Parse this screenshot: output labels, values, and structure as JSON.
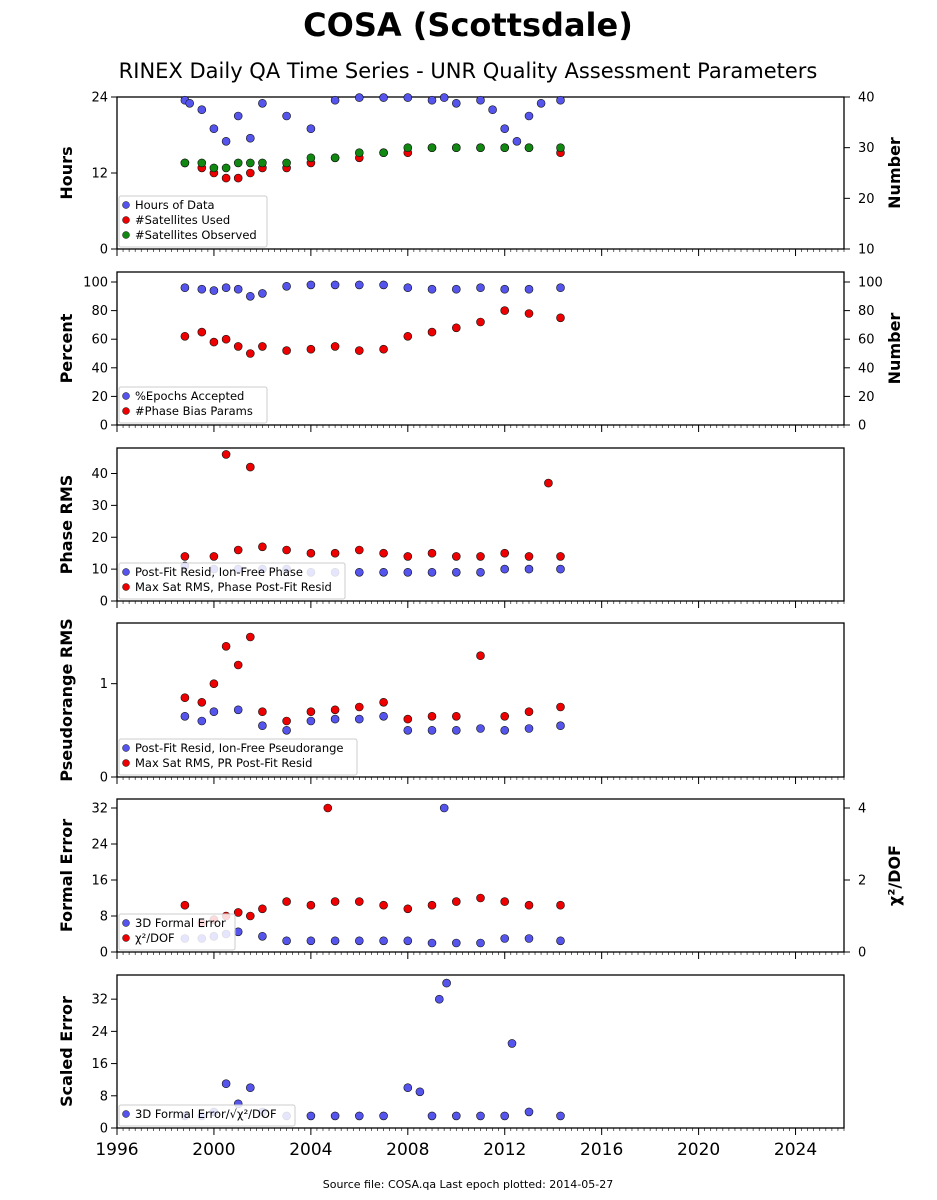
{
  "title": "COSA (Scottsdale)",
  "subtitle": "RINEX Daily QA Time Series - UNR Quality Assessment Parameters",
  "footer": "Source file: COSA.qa Last epoch plotted: 2014-05-27",
  "colors": {
    "blue": "#5555ee",
    "red": "#ee0000",
    "green": "#118811"
  },
  "chart_data": {
    "type": "scatter",
    "xlim": [
      1996,
      2026
    ],
    "xticks": [
      "1996",
      "2000",
      "2004",
      "2008",
      "2012",
      "2016",
      "2020",
      "2024"
    ],
    "panels": [
      {
        "ylabel": "Hours",
        "ylim": [
          0,
          24
        ],
        "yticks": [
          "0",
          "12",
          "24"
        ],
        "ylabel_right": "Number",
        "ylim_right": [
          10,
          40
        ],
        "yticks_right": [
          "10",
          "20",
          "30",
          "40"
        ],
        "legend": [
          "Hours of Data",
          "#Satellites Used",
          "#Satellites Observed"
        ],
        "series": [
          {
            "name": "Hours of Data",
            "color": "blue",
            "axis": "left",
            "x": [
              1998.8,
              1999.0,
              1999.5,
              2000.0,
              2000.5,
              2001.0,
              2001.5,
              2002.0,
              2003.0,
              2004.0,
              2005.0,
              2006.0,
              2007.0,
              2008.0,
              2009.0,
              2009.5,
              2010.0,
              2011.0,
              2011.5,
              2012.0,
              2012.5,
              2013.0,
              2013.5,
              2014.3
            ],
            "y": [
              23.5,
              23.0,
              22.0,
              19.0,
              17.0,
              21.0,
              17.5,
              23.0,
              21.0,
              19.0,
              23.5,
              23.9,
              23.9,
              23.9,
              23.5,
              23.9,
              23.0,
              23.5,
              22.0,
              19.0,
              17.0,
              21.0,
              23.0,
              23.5
            ]
          },
          {
            "name": "#Satellites Used",
            "color": "red",
            "axis": "right",
            "x": [
              1998.8,
              1999.5,
              2000.0,
              2000.5,
              2001.0,
              2001.5,
              2002.0,
              2003.0,
              2004.0,
              2005.0,
              2006.0,
              2007.0,
              2008.0,
              2009.0,
              2010.0,
              2011.0,
              2012.0,
              2013.0,
              2014.3
            ],
            "y": [
              27,
              26,
              25,
              24,
              24,
              25,
              26,
              26,
              27,
              28,
              28,
              29,
              29,
              30,
              30,
              30,
              30,
              30,
              29
            ]
          },
          {
            "name": "#Satellites Observed",
            "color": "green",
            "axis": "right",
            "x": [
              1998.8,
              1999.5,
              2000.0,
              2000.5,
              2001.0,
              2001.5,
              2002.0,
              2003.0,
              2004.0,
              2005.0,
              2006.0,
              2007.0,
              2008.0,
              2009.0,
              2010.0,
              2011.0,
              2012.0,
              2013.0,
              2014.3
            ],
            "y": [
              27,
              27,
              26,
              26,
              27,
              27,
              27,
              27,
              28,
              28,
              29,
              29,
              30,
              30,
              30,
              30,
              30,
              30,
              30
            ]
          }
        ]
      },
      {
        "ylabel": "Percent",
        "ylim": [
          0,
          107
        ],
        "yticks": [
          "0",
          "20",
          "40",
          "60",
          "80",
          "100"
        ],
        "ylabel_right": "Number",
        "ylim_right": [
          0,
          107
        ],
        "yticks_right": [
          "0",
          "20",
          "40",
          "60",
          "80",
          "100"
        ],
        "legend": [
          "%Epochs Accepted",
          "#Phase Bias Params"
        ],
        "series": [
          {
            "name": "%Epochs Accepted",
            "color": "blue",
            "axis": "left",
            "x": [
              1998.8,
              1999.5,
              2000.0,
              2000.5,
              2001.0,
              2001.5,
              2002.0,
              2003.0,
              2004.0,
              2005.0,
              2006.0,
              2007.0,
              2008.0,
              2009.0,
              2010.0,
              2011.0,
              2012.0,
              2013.0,
              2014.3
            ],
            "y": [
              96,
              95,
              94,
              96,
              95,
              90,
              92,
              97,
              98,
              98,
              98,
              98,
              96,
              95,
              95,
              96,
              95,
              95,
              96
            ]
          },
          {
            "name": "#Phase Bias Params",
            "color": "red",
            "axis": "right",
            "x": [
              1998.8,
              1999.5,
              2000.0,
              2000.5,
              2001.0,
              2001.5,
              2002.0,
              2003.0,
              2004.0,
              2005.0,
              2006.0,
              2007.0,
              2008.0,
              2009.0,
              2010.0,
              2011.0,
              2012.0,
              2013.0,
              2014.3
            ],
            "y": [
              62,
              65,
              58,
              60,
              55,
              50,
              55,
              52,
              53,
              55,
              52,
              53,
              62,
              65,
              68,
              72,
              80,
              78,
              75
            ]
          }
        ]
      },
      {
        "ylabel": "Phase RMS",
        "ylim": [
          0,
          48
        ],
        "yticks": [
          "0",
          "10",
          "20",
          "30",
          "40"
        ],
        "legend": [
          "Post-Fit Resid, Ion-Free Phase",
          "Max Sat RMS, Phase Post-Fit Resid"
        ],
        "series": [
          {
            "name": "Post-Fit Resid, Ion-Free Phase",
            "color": "blue",
            "axis": "left",
            "x": [
              1998.8,
              2000.0,
              2001.0,
              2002.0,
              2003.0,
              2004.0,
              2005.0,
              2006.0,
              2007.0,
              2008.0,
              2009.0,
              2010.0,
              2011.0,
              2012.0,
              2013.0,
              2014.3
            ],
            "y": [
              11,
              10,
              10,
              10,
              10,
              9,
              9,
              9,
              9,
              9,
              9,
              9,
              9,
              10,
              10,
              10
            ]
          },
          {
            "name": "Max Sat RMS, Phase Post-Fit Resid",
            "color": "red",
            "axis": "left",
            "x": [
              1998.8,
              2000.0,
              2000.5,
              2001.0,
              2001.5,
              2002.0,
              2003.0,
              2004.0,
              2005.0,
              2006.0,
              2007.0,
              2008.0,
              2009.0,
              2010.0,
              2011.0,
              2012.0,
              2013.0,
              2013.8,
              2014.3
            ],
            "y": [
              14,
              14,
              46,
              16,
              42,
              17,
              16,
              15,
              15,
              16,
              15,
              14,
              15,
              14,
              14,
              15,
              14,
              37,
              14
            ]
          }
        ]
      },
      {
        "ylabel": "Pseudorange RMS",
        "ylim": [
          0,
          1.65
        ],
        "yticks": [
          "0",
          "1"
        ],
        "legend": [
          "Post-Fit Resid, Ion-Free Pseudorange",
          "Max Sat RMS, PR Post-Fit Resid"
        ],
        "series": [
          {
            "name": "Post-Fit Resid, Ion-Free Pseudorange",
            "color": "blue",
            "axis": "left",
            "x": [
              1998.8,
              1999.5,
              2000.0,
              2001.0,
              2002.0,
              2003.0,
              2004.0,
              2005.0,
              2006.0,
              2007.0,
              2008.0,
              2009.0,
              2010.0,
              2011.0,
              2012.0,
              2013.0,
              2014.3
            ],
            "y": [
              0.65,
              0.6,
              0.7,
              0.72,
              0.55,
              0.5,
              0.6,
              0.62,
              0.62,
              0.65,
              0.5,
              0.5,
              0.5,
              0.52,
              0.5,
              0.52,
              0.55
            ]
          },
          {
            "name": "Max Sat RMS, PR Post-Fit Resid",
            "color": "red",
            "axis": "left",
            "x": [
              1998.8,
              1999.5,
              2000.0,
              2000.5,
              2001.0,
              2001.5,
              2002.0,
              2003.0,
              2004.0,
              2005.0,
              2006.0,
              2007.0,
              2008.0,
              2009.0,
              2010.0,
              2011.0,
              2012.0,
              2013.0,
              2014.3
            ],
            "y": [
              0.85,
              0.8,
              1.0,
              1.4,
              1.2,
              1.5,
              0.7,
              0.6,
              0.7,
              0.72,
              0.75,
              0.8,
              0.62,
              0.65,
              0.65,
              1.3,
              0.65,
              0.7,
              0.75
            ]
          }
        ]
      },
      {
        "ylabel": "Formal Error",
        "ylim": [
          0,
          34
        ],
        "yticks": [
          "0",
          "8",
          "16",
          "24",
          "32"
        ],
        "ylabel_right": "χ²/DOF",
        "ylim_right": [
          0,
          4.25
        ],
        "yticks_right": [
          "0",
          "2",
          "4"
        ],
        "legend": [
          "3D Formal Error",
          "χ²/DOF"
        ],
        "series": [
          {
            "name": "3D Formal Error",
            "color": "blue",
            "axis": "left",
            "x": [
              1998.8,
              1999.5,
              2000.0,
              2000.5,
              2001.0,
              2002.0,
              2003.0,
              2004.0,
              2005.0,
              2006.0,
              2007.0,
              2008.0,
              2009.0,
              2009.5,
              2010.0,
              2011.0,
              2012.0,
              2013.0,
              2014.3
            ],
            "y": [
              3,
              3,
              3.5,
              4,
              4.5,
              3.5,
              2.5,
              2.5,
              2.5,
              2.5,
              2.5,
              2.5,
              2,
              32,
              2,
              2,
              3,
              3,
              2.5
            ]
          },
          {
            "name": "χ²/DOF",
            "color": "red",
            "axis": "right",
            "x": [
              1998.8,
              1999.5,
              2000.0,
              2000.5,
              2001.0,
              2001.5,
              2002.0,
              2003.0,
              2004.0,
              2004.7,
              2005.0,
              2006.0,
              2007.0,
              2008.0,
              2009.0,
              2010.0,
              2011.0,
              2012.0,
              2013.0,
              2014.3
            ],
            "y": [
              1.3,
              0.8,
              0.9,
              1.0,
              1.1,
              1.0,
              1.2,
              1.4,
              1.3,
              4.0,
              1.4,
              1.4,
              1.3,
              1.2,
              1.3,
              1.4,
              1.5,
              1.4,
              1.3,
              1.3
            ]
          }
        ]
      },
      {
        "ylabel": "Scaled Error",
        "ylim": [
          0,
          38
        ],
        "yticks": [
          "0",
          "8",
          "16",
          "24",
          "32"
        ],
        "legend": [
          "3D Formal Error/√χ²/DOF"
        ],
        "series": [
          {
            "name": "3D Formal Error/√χ²/DOF",
            "color": "blue",
            "axis": "left",
            "x": [
              1998.8,
              1999.5,
              2000.0,
              2000.5,
              2001.0,
              2001.5,
              2002.0,
              2003.0,
              2004.0,
              2005.0,
              2006.0,
              2007.0,
              2008.0,
              2008.5,
              2009.0,
              2009.3,
              2009.6,
              2010.0,
              2011.0,
              2012.0,
              2012.3,
              2013.0,
              2014.3
            ],
            "y": [
              3,
              3,
              4,
              11,
              6,
              10,
              4,
              3,
              3,
              3,
              3,
              3,
              10,
              9,
              3,
              32,
              36,
              3,
              3,
              3,
              21,
              4,
              3
            ]
          }
        ]
      }
    ]
  }
}
